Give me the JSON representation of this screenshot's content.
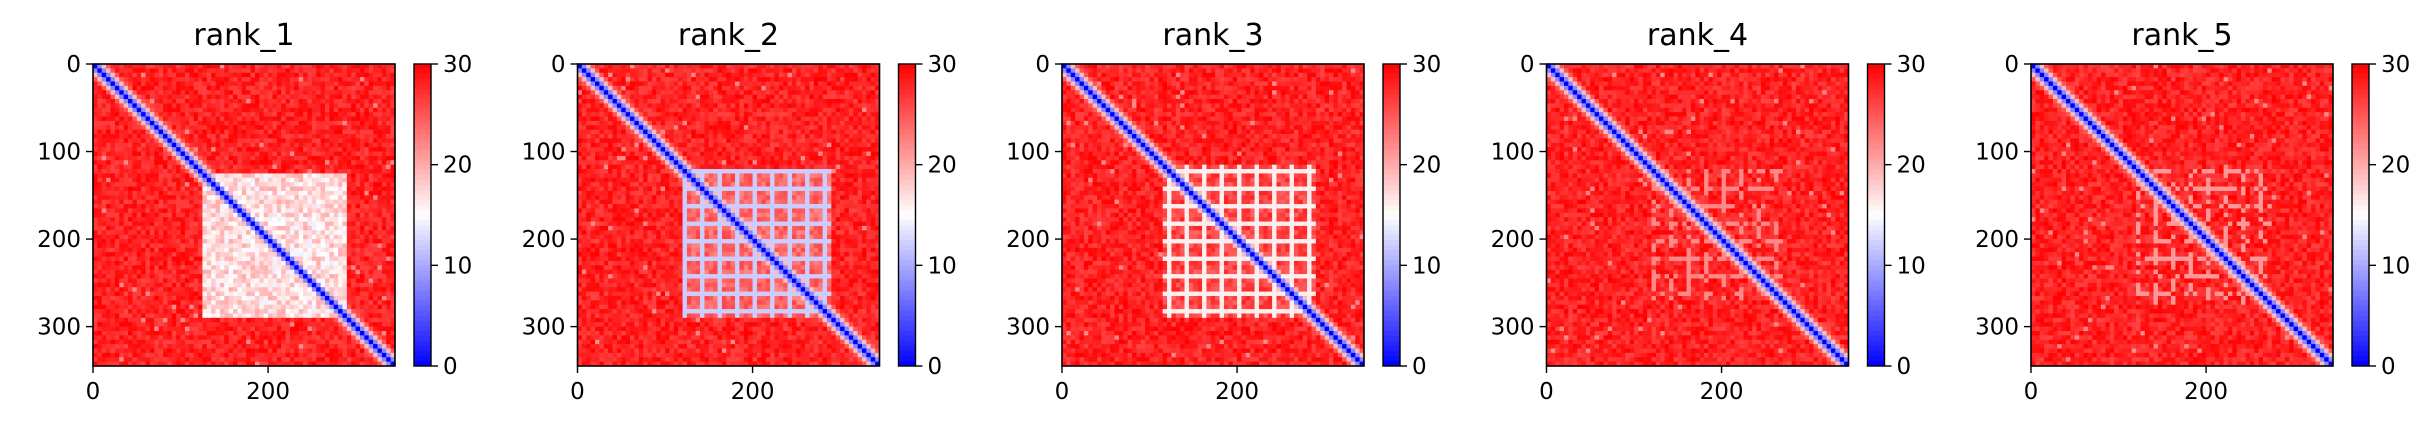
{
  "chart_data": [
    {
      "type": "heatmap",
      "title": "rank_1",
      "x_ticks": [
        0,
        200
      ],
      "y_ticks": [
        0,
        100,
        200,
        300
      ],
      "xlim": [
        0,
        345
      ],
      "ylim": [
        345,
        0
      ],
      "colorbar": {
        "ticks": [
          0,
          10,
          20,
          30
        ],
        "range": [
          0,
          30
        ],
        "colormap": "bwr"
      },
      "matrix": {
        "size": 345,
        "diagonal_value": 0,
        "background_value": 30,
        "low_block": {
          "start": 125,
          "end": 285,
          "value": 14
        },
        "motif": "diffuse dense block"
      }
    },
    {
      "type": "heatmap",
      "title": "rank_2",
      "x_ticks": [
        0,
        200
      ],
      "y_ticks": [
        0,
        100,
        200,
        300
      ],
      "xlim": [
        0,
        345
      ],
      "ylim": [
        345,
        0
      ],
      "colorbar": {
        "ticks": [
          0,
          10,
          20,
          30
        ],
        "range": [
          0,
          30
        ],
        "colormap": "bwr"
      },
      "matrix": {
        "size": 345,
        "diagonal_value": 0,
        "background_value": 30,
        "low_block": {
          "start": 120,
          "end": 285,
          "value": 16
        },
        "motif": "block with grid stripes"
      }
    },
    {
      "type": "heatmap",
      "title": "rank_3",
      "x_ticks": [
        0,
        200
      ],
      "y_ticks": [
        0,
        100,
        200,
        300
      ],
      "xlim": [
        0,
        345
      ],
      "ylim": [
        345,
        0
      ],
      "colorbar": {
        "ticks": [
          0,
          10,
          20,
          30
        ],
        "range": [
          0,
          30
        ],
        "colormap": "bwr"
      },
      "matrix": {
        "size": 345,
        "diagonal_value": 0,
        "background_value": 30,
        "low_block": {
          "start": 115,
          "end": 285,
          "value": 18
        },
        "motif": "grid stripes"
      }
    },
    {
      "type": "heatmap",
      "title": "rank_4",
      "x_ticks": [
        0,
        200
      ],
      "y_ticks": [
        0,
        100,
        200,
        300
      ],
      "xlim": [
        0,
        345
      ],
      "ylim": [
        345,
        0
      ],
      "colorbar": {
        "ticks": [
          0,
          10,
          20,
          30
        ],
        "range": [
          0,
          30
        ],
        "colormap": "bwr"
      },
      "matrix": {
        "size": 345,
        "diagonal_value": 0,
        "background_value": 30,
        "low_block": {
          "start": 120,
          "end": 265,
          "value": 22
        },
        "motif": "sparse grid"
      }
    },
    {
      "type": "heatmap",
      "title": "rank_5",
      "x_ticks": [
        0,
        200
      ],
      "y_ticks": [
        0,
        100,
        200,
        300
      ],
      "xlim": [
        0,
        345
      ],
      "ylim": [
        345,
        0
      ],
      "colorbar": {
        "ticks": [
          0,
          10,
          20,
          30
        ],
        "range": [
          0,
          30
        ],
        "colormap": "bwr"
      },
      "matrix": {
        "size": 345,
        "diagonal_value": 0,
        "background_value": 30,
        "low_block": {
          "start": 120,
          "end": 270,
          "value": 21
        },
        "motif": "sparse grid"
      }
    }
  ]
}
